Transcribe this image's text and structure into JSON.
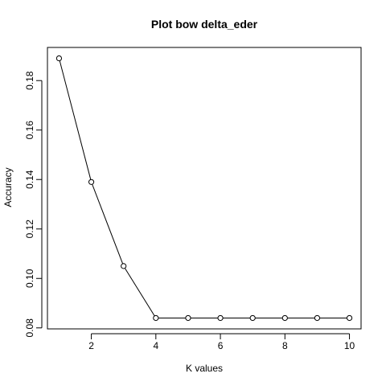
{
  "chart_data": {
    "type": "line",
    "title": "Plot bow delta_eder",
    "xlabel": "K values",
    "ylabel": "Accuracy",
    "x": [
      1,
      2,
      3,
      4,
      5,
      6,
      7,
      8,
      9,
      10
    ],
    "series": [
      {
        "values": [
          0.189,
          0.139,
          0.105,
          0.084,
          0.084,
          0.084,
          0.084,
          0.084,
          0.084,
          0.084
        ]
      }
    ],
    "xlim": [
      0.64,
      10.36
    ],
    "ylim": [
      0.0796,
      0.1934
    ],
    "x_ticks": [
      2,
      4,
      6,
      8,
      10
    ],
    "x_tick_labels": [
      "2",
      "4",
      "6",
      "8",
      "10"
    ],
    "y_ticks": [
      0.08,
      0.1,
      0.12,
      0.14,
      0.16,
      0.18
    ],
    "y_tick_labels": [
      "0.08",
      "0.10",
      "0.12",
      "0.14",
      "0.16",
      "0.18"
    ],
    "grid": false,
    "legend": "none",
    "marker": "open-circle",
    "line_color": "#000000"
  }
}
